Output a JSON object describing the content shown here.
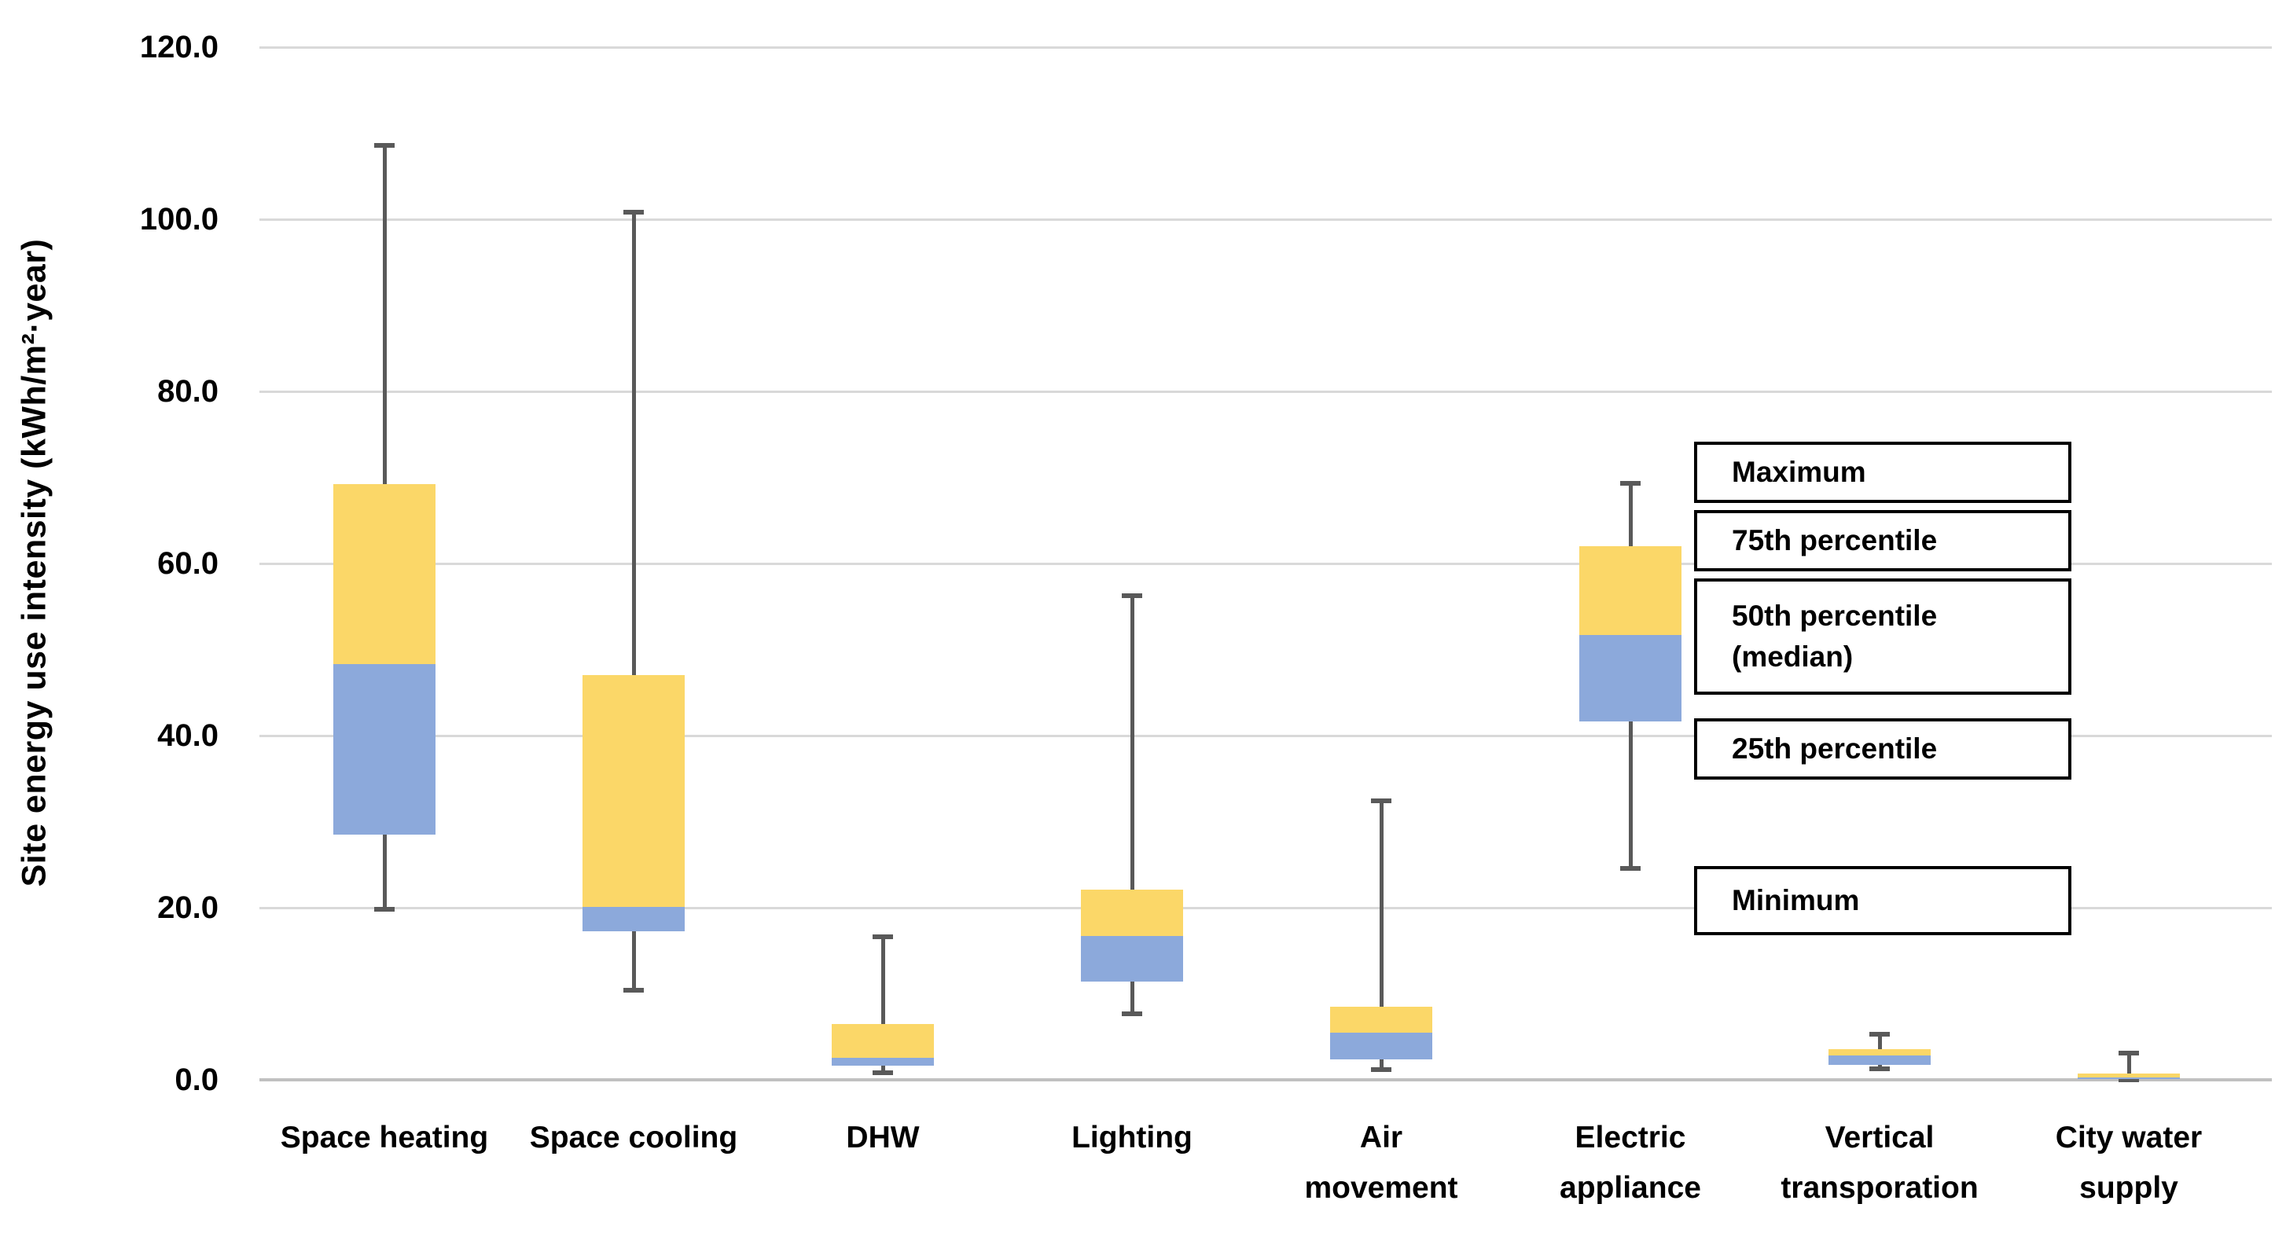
{
  "chart_data": {
    "type": "box",
    "title": "",
    "xlabel": "",
    "ylabel": "Site energy use intensity (kWh/m²·year)",
    "y_axis": {
      "min": 0,
      "max": 120,
      "tick_step": 20,
      "tick_labels": [
        "0.0",
        "20.0",
        "40.0",
        "60.0",
        "80.0",
        "100.0",
        "120.0"
      ],
      "grid": true
    },
    "categories": [
      "Space heating",
      "Space cooling",
      "DHW",
      "Lighting",
      "Air movement",
      "Electric appliance",
      "Vertical transporation",
      "City water supply"
    ],
    "category_label_lines": [
      [
        "Space heating"
      ],
      [
        "Space cooling"
      ],
      [
        "DHW"
      ],
      [
        "Lighting"
      ],
      [
        "Air",
        "movement"
      ],
      [
        "Electric",
        "appliance"
      ],
      [
        "Vertical",
        "transporation"
      ],
      [
        "City water",
        "supply"
      ]
    ],
    "series_stats": [
      {
        "name": "Space heating",
        "min": 19.8,
        "p25": 28.5,
        "p50": 48.3,
        "p75": 69.2,
        "max": 108.6
      },
      {
        "name": "Space cooling",
        "min": 10.4,
        "p25": 17.3,
        "p50": 20.1,
        "p75": 47.0,
        "max": 100.8
      },
      {
        "name": "DHW",
        "min": 0.8,
        "p25": 1.6,
        "p50": 2.6,
        "p75": 6.5,
        "max": 16.6
      },
      {
        "name": "Lighting",
        "min": 7.7,
        "p25": 11.4,
        "p50": 16.7,
        "p75": 22.1,
        "max": 56.3
      },
      {
        "name": "Air movement",
        "min": 1.2,
        "p25": 2.4,
        "p50": 5.5,
        "p75": 8.5,
        "max": 32.4
      },
      {
        "name": "Electric appliance",
        "min": 24.6,
        "p25": 41.6,
        "p50": 51.7,
        "p75": 62.0,
        "max": 69.3
      },
      {
        "name": "Vertical transporation",
        "min": 1.3,
        "p25": 1.7,
        "p50": 2.8,
        "p75": 3.6,
        "max": 5.3
      },
      {
        "name": "City water supply",
        "min": 0.0,
        "p25": 0.1,
        "p50": 0.3,
        "p75": 0.7,
        "max": 3.1
      }
    ],
    "legend": {
      "position": "right",
      "items": [
        {
          "id": "maximum",
          "lines": [
            "Maximum"
          ]
        },
        {
          "id": "75th-percentile",
          "lines": [
            "75th  percentile"
          ]
        },
        {
          "id": "50th-percentile",
          "lines": [
            "50th percentile",
            "(median)"
          ]
        },
        {
          "id": "25th-percentile",
          "lines": [
            "25th percentile"
          ]
        },
        {
          "id": "minimum",
          "lines": [
            "Minimum"
          ]
        }
      ]
    },
    "colors": {
      "upper_box": "#FBD768",
      "lower_box": "#8CA9DB",
      "whisker": "#595959",
      "gridline": "#D9D9D9",
      "axis_line": "#C0C0C0",
      "text": "#000000",
      "background": "#FFFFFF",
      "legend_border": "#000000"
    }
  }
}
